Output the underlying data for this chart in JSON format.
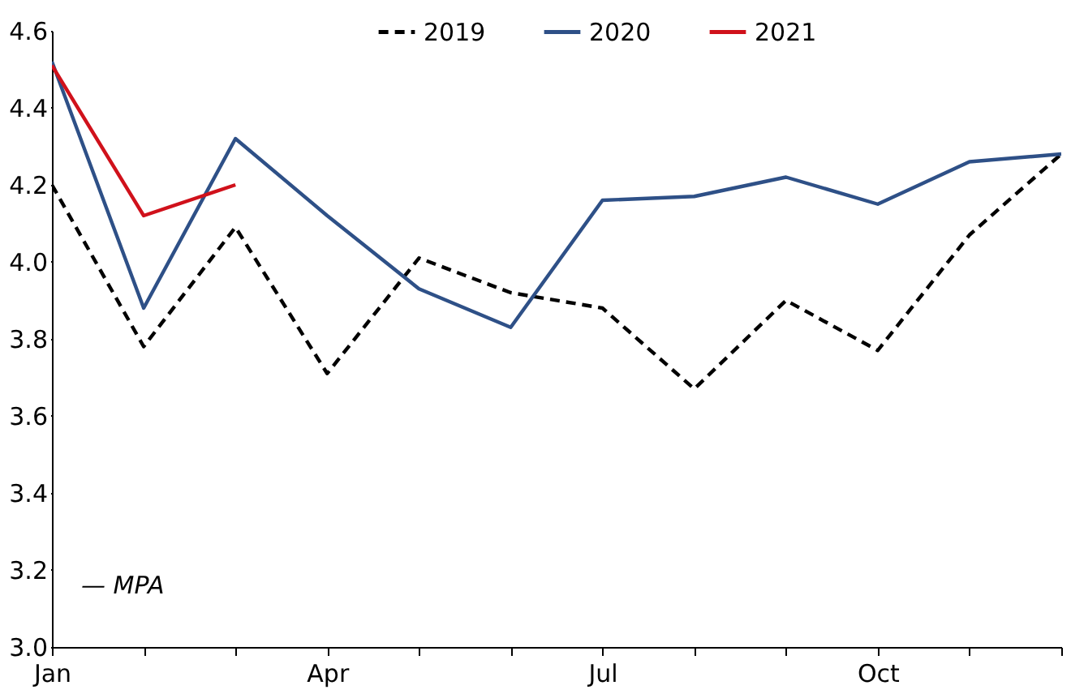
{
  "chart_data": {
    "type": "line",
    "categories": [
      "Jan",
      null,
      null,
      "Apr",
      null,
      null,
      "Jul",
      null,
      null,
      "Oct",
      null,
      null
    ],
    "series": [
      {
        "name": "2019",
        "color": "#000000",
        "line_style": "dashed",
        "values": [
          4.2,
          3.78,
          4.09,
          3.71,
          4.01,
          3.92,
          3.88,
          3.67,
          3.9,
          3.77,
          4.07,
          4.28
        ]
      },
      {
        "name": "2020",
        "color": "#2e5087",
        "line_style": "solid",
        "values": [
          4.52,
          3.88,
          4.32,
          4.12,
          3.93,
          3.83,
          4.16,
          4.17,
          4.22,
          4.15,
          4.26,
          4.28
        ]
      },
      {
        "name": "2021",
        "color": "#d0111b",
        "line_style": "solid",
        "values": [
          4.51,
          4.12,
          4.2,
          null,
          null,
          null,
          null,
          null,
          null,
          null,
          null,
          null
        ]
      }
    ],
    "ylim": [
      3.0,
      4.6
    ],
    "yticks": [
      {
        "value": 3.0,
        "label": "3.0"
      },
      3.2,
      3.4,
      3.6,
      3.8,
      {
        "value": 4.0,
        "label": "4.0"
      },
      4.2,
      4.4,
      4.6
    ],
    "grid": false,
    "legend": "top",
    "marker": "none",
    "annotations": [
      "— MPA"
    ]
  }
}
